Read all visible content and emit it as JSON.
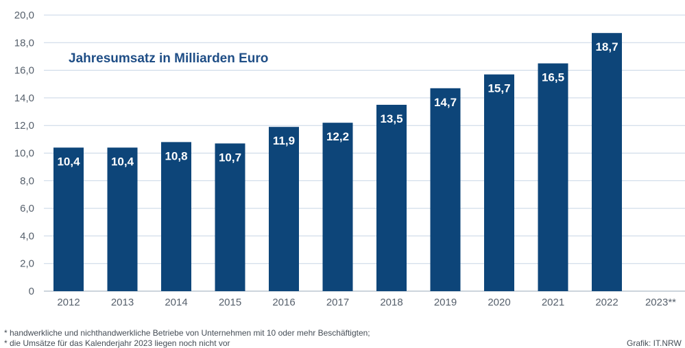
{
  "colors": {
    "bar": "#0d4579",
    "grid": "#c7d5e5",
    "axis": "#9aa8b8",
    "title": "#1f4e86"
  },
  "chart_data": {
    "type": "bar",
    "title": "Jahresumsatz in Milliarden Euro",
    "categories": [
      "2012",
      "2013",
      "2014",
      "2015",
      "2016",
      "2017",
      "2018",
      "2019",
      "2020",
      "2021",
      "2022",
      "2023**"
    ],
    "values": [
      10.4,
      10.4,
      10.8,
      10.7,
      11.9,
      12.2,
      13.5,
      14.7,
      15.7,
      16.5,
      18.7,
      null
    ],
    "value_labels": [
      "10,4",
      "10,4",
      "10,8",
      "10,7",
      "11,9",
      "12,2",
      "13,5",
      "14,7",
      "15,7",
      "16,5",
      "18,7",
      ""
    ],
    "yticks": [
      "0",
      "2,0",
      "4,0",
      "6,0",
      "8,0",
      "10,0",
      "12,0",
      "14,0",
      "16,0",
      "18,0",
      "20,0"
    ],
    "ylim": [
      0,
      20
    ],
    "grid": true,
    "legend": "none"
  },
  "footnotes": {
    "note1": "*  handwerkliche und nichthandwerkliche Betriebe von Unternehmen mit 10 oder mehr Beschäftigten;",
    "note2": "*  die Umsätze für das Kalenderjahr 2023 liegen noch nicht vor",
    "credit": "Grafik: IT.NRW"
  }
}
